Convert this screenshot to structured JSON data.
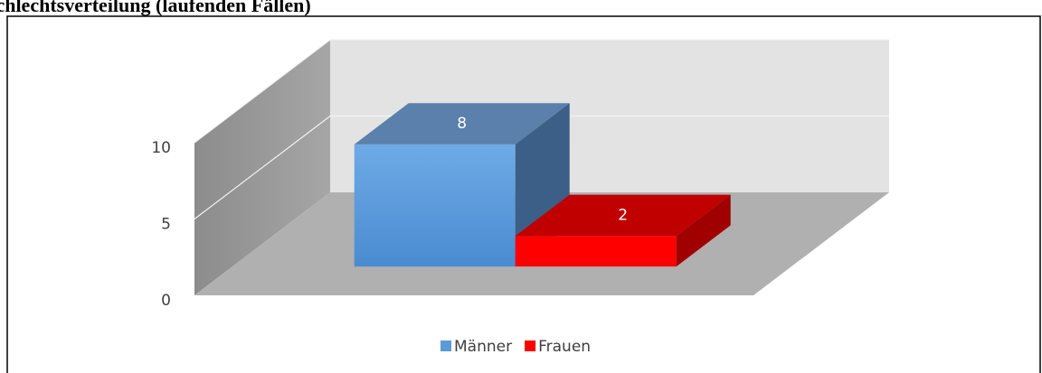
{
  "chart_data": {
    "type": "bar3d",
    "title": "Geschlechtsverteilung (laufenden Fällen)",
    "categories": [
      null
    ],
    "series": [
      {
        "name": "Männer",
        "color": "#5b9bd5",
        "values": [
          8
        ]
      },
      {
        "name": "Frauen",
        "color": "#ff0000",
        "values": [
          2
        ]
      }
    ],
    "ylim": [
      0,
      10
    ],
    "yticks": [
      0,
      5,
      10
    ],
    "grid": true,
    "legend": "bottom"
  }
}
